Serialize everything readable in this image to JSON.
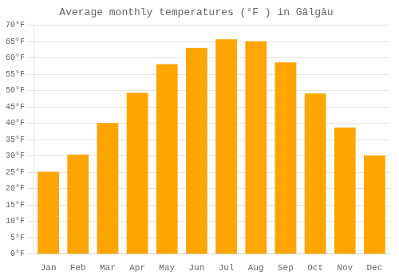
{
  "chart_data": {
    "type": "bar",
    "title": "Average monthly temperatures (°F ) in Gâlgău",
    "categories": [
      "Jan",
      "Feb",
      "Mar",
      "Apr",
      "May",
      "Jun",
      "Jul",
      "Aug",
      "Sep",
      "Oct",
      "Nov",
      "Dec"
    ],
    "values": [
      25.2,
      30.4,
      40.1,
      49.3,
      58.1,
      63.1,
      65.7,
      65.1,
      58.6,
      49.1,
      38.7,
      30.2
    ],
    "color": "#FFA500",
    "ylim": [
      0,
      70
    ],
    "yticks": [
      {
        "value": 0,
        "label": "0°F"
      },
      {
        "value": 5,
        "label": "5°F"
      },
      {
        "value": 10,
        "label": "10°F"
      },
      {
        "value": 15,
        "label": "15°F"
      },
      {
        "value": 20,
        "label": "20°F"
      },
      {
        "value": 25,
        "label": "25°F"
      },
      {
        "value": 30,
        "label": "30°F"
      },
      {
        "value": 35,
        "label": "35°F"
      },
      {
        "value": 40,
        "label": "40°F"
      },
      {
        "value": 45,
        "label": "45°F"
      },
      {
        "value": 50,
        "label": "50°F"
      },
      {
        "value": 55,
        "label": "55°F"
      },
      {
        "value": 60,
        "label": "60°F"
      },
      {
        "value": 65,
        "label": "65°F"
      },
      {
        "value": 70,
        "label": "70°F"
      }
    ],
    "grid": true
  }
}
